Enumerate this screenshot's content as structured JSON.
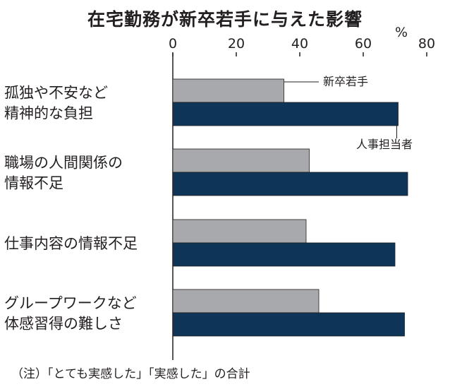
{
  "title": "在宅勤務が新卒若手に与えた影響",
  "unit": "%",
  "note": "（注）「とても実感した」「実感した」の合計",
  "chart_data": {
    "type": "bar",
    "orientation": "horizontal",
    "title": "在宅勤務が新卒若手に与えた影響",
    "unit": "%",
    "xlim": [
      0,
      80
    ],
    "ticks": [
      0,
      20,
      40,
      60,
      80
    ],
    "categories": [
      [
        "孤独や不安など",
        "精神的な負担"
      ],
      [
        "職場の人間関係の",
        "情報不足"
      ],
      [
        "仕事内容の情報不足"
      ],
      [
        "グループワークなど",
        "体感習得の難しさ"
      ]
    ],
    "series": [
      {
        "name": "新卒若手",
        "color": "#a7a9ac",
        "values": [
          35,
          43,
          42,
          46
        ]
      },
      {
        "name": "人事担当者",
        "color": "#0e3558",
        "values": [
          71,
          74,
          70,
          73
        ]
      }
    ],
    "legend_placement": "annotations beside first bar pair",
    "grid": false
  }
}
